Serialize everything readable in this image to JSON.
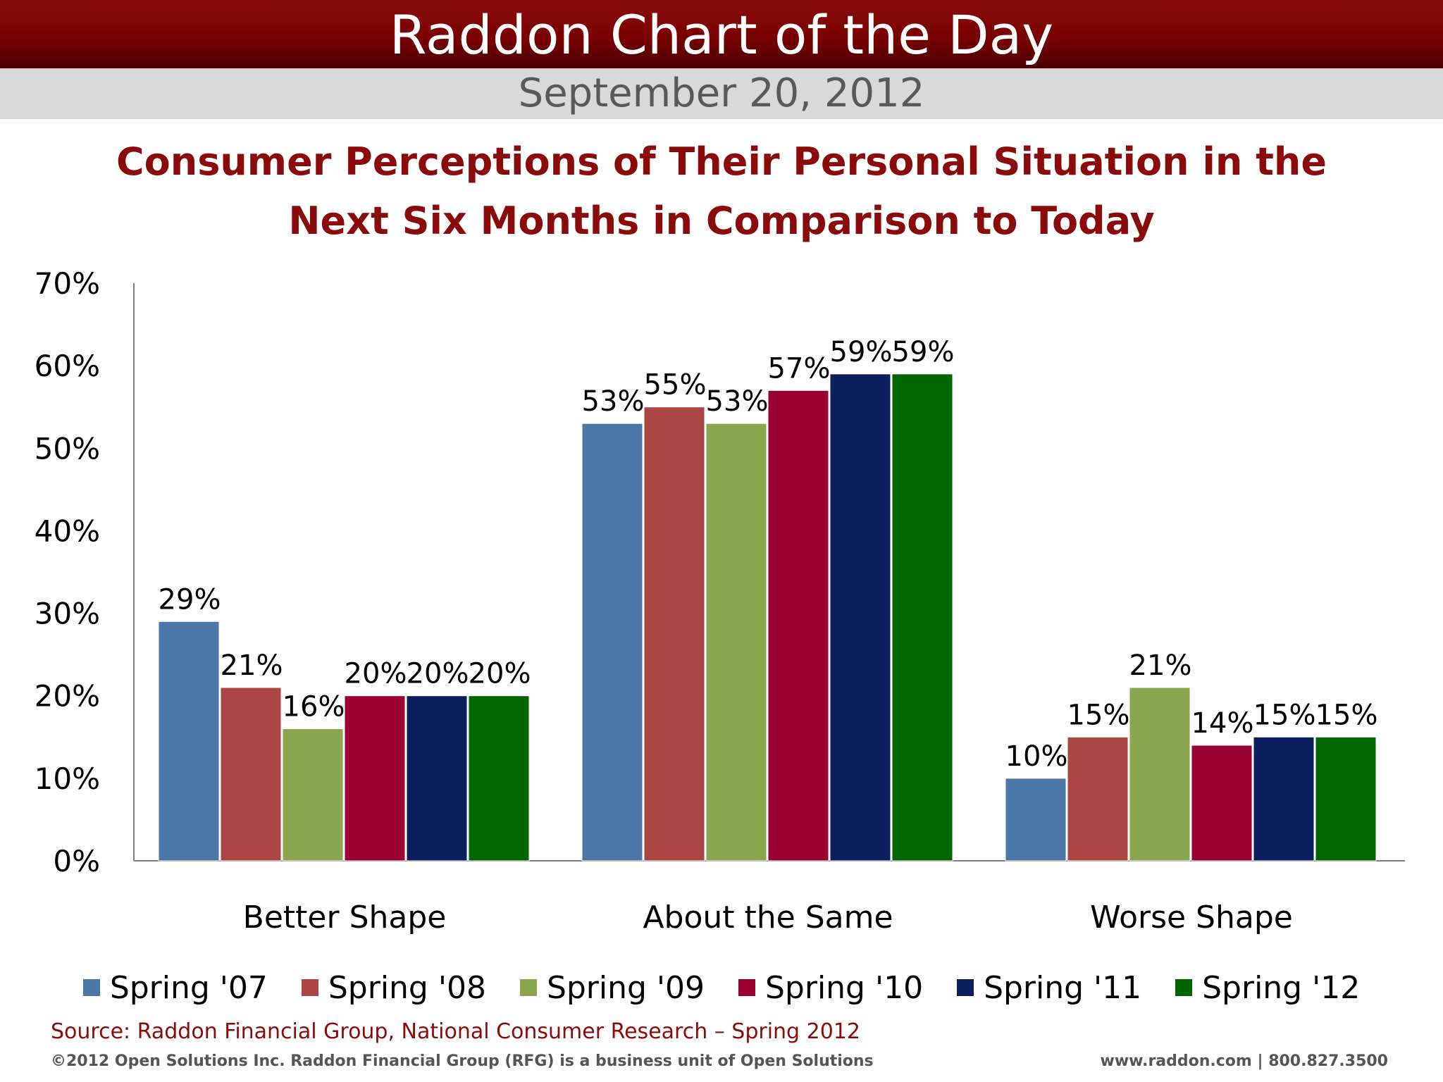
{
  "header": {
    "title": "Raddon Chart of the Day",
    "date": "September 20, 2012"
  },
  "chart_data": {
    "type": "bar",
    "title": "Consumer Perceptions of Their Personal Situation in the Next Six Months in Comparison to Today",
    "categories": [
      "Better Shape",
      "About the Same",
      "Worse Shape"
    ],
    "series": [
      {
        "name": "Spring '07",
        "color": "#4a76a8",
        "values": [
          29,
          53,
          10
        ]
      },
      {
        "name": "Spring '08",
        "color": "#aa4643",
        "values": [
          21,
          55,
          15
        ]
      },
      {
        "name": "Spring '09",
        "color": "#89a54e",
        "values": [
          16,
          53,
          21
        ]
      },
      {
        "name": "Spring '10",
        "color": "#9b0033",
        "values": [
          20,
          57,
          14
        ]
      },
      {
        "name": "Spring '11",
        "color": "#0b1f5e",
        "values": [
          20,
          59,
          15
        ]
      },
      {
        "name": "Spring '12",
        "color": "#006600",
        "values": [
          20,
          59,
          15
        ]
      }
    ],
    "value_labels": [
      [
        "29%",
        "53%",
        "10%"
      ],
      [
        "21%",
        "55%",
        "15%"
      ],
      [
        "16%",
        "53%",
        "21%"
      ],
      [
        "20%",
        "57%",
        "14%"
      ],
      [
        "20%",
        "59%",
        "15%"
      ],
      [
        "20%",
        "59%",
        "15%"
      ]
    ],
    "ylim": [
      0,
      70
    ],
    "yticks": [
      "0%",
      "10%",
      "20%",
      "30%",
      "40%",
      "50%",
      "60%",
      "70%"
    ],
    "xlabel": "",
    "ylabel": "",
    "grid": false,
    "legend_position": "bottom"
  },
  "footer": {
    "source": "Source: Raddon Financial Group, National Consumer Research – Spring 2012",
    "copyright": "©2012 Open Solutions Inc.  Raddon Financial Group (RFG) is a business unit of Open Solutions",
    "website": "www.raddon.com  |  800.827.3500"
  }
}
